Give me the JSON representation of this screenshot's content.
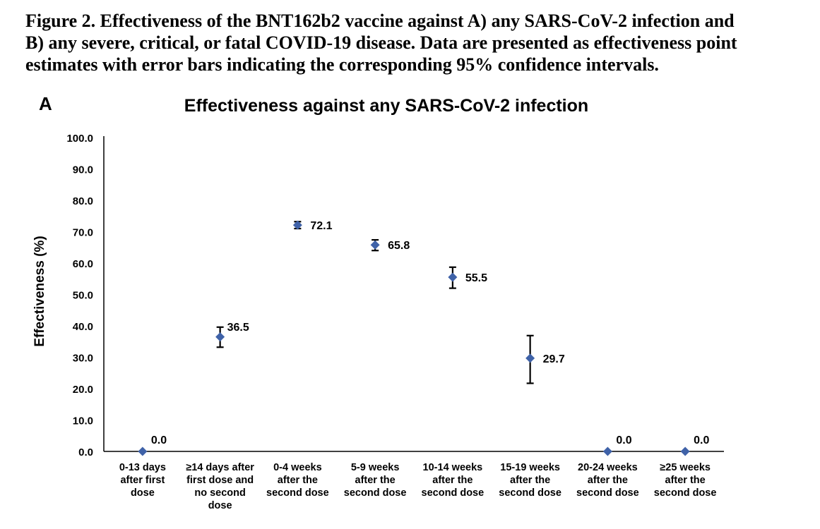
{
  "caption": {
    "lines": [
      "Figure 2. Effectiveness of the BNT162b2 vaccine against A) any SARS-CoV-2 infection and",
      "B) any severe, critical, or fatal COVID-19 disease. Data are presented as effectiveness point",
      "estimates with error bars indicating the corresponding 95% confidence intervals."
    ]
  },
  "colors": {
    "marker": "#3f62a8",
    "error_bar": "#000000",
    "axis": "#000000",
    "text": "#000000"
  },
  "chart_data": {
    "type": "scatter",
    "panel_letter": "A",
    "title": "Effectiveness against any SARS-CoV-2 infection",
    "ylabel": "Effectiveness (%)",
    "xlabel": "",
    "ylim": [
      0,
      100
    ],
    "yticks": [
      "0.0",
      "10.0",
      "20.0",
      "30.0",
      "40.0",
      "50.0",
      "60.0",
      "70.0",
      "80.0",
      "90.0",
      "100.0"
    ],
    "grid": false,
    "legend": "none",
    "categories": [
      [
        "0-13 days",
        "after first",
        "dose"
      ],
      [
        "≥14 days after",
        "first dose and",
        "no second",
        "dose"
      ],
      [
        "0-4 weeks",
        "after the",
        "second dose"
      ],
      [
        "5-9 weeks",
        "after the",
        "second dose"
      ],
      [
        "10-14 weeks",
        "after the",
        "second dose"
      ],
      [
        "15-19 weeks",
        "after the",
        "second dose"
      ],
      [
        "20-24 weeks",
        "after the",
        "second dose"
      ],
      [
        "≥25 weeks",
        "after the",
        "second dose"
      ]
    ],
    "values": [
      0.0,
      36.5,
      72.1,
      65.8,
      55.5,
      29.7,
      0.0,
      0.0
    ],
    "value_labels": [
      "0.0",
      "36.5",
      "72.1",
      "65.8",
      "55.5",
      "29.7",
      "0.0",
      "0.0"
    ],
    "ci_lower": [
      null,
      33.2,
      71.0,
      64.0,
      52.0,
      21.7,
      null,
      null
    ],
    "ci_upper": [
      null,
      39.6,
      73.2,
      67.4,
      58.7,
      36.9,
      null,
      null
    ]
  }
}
